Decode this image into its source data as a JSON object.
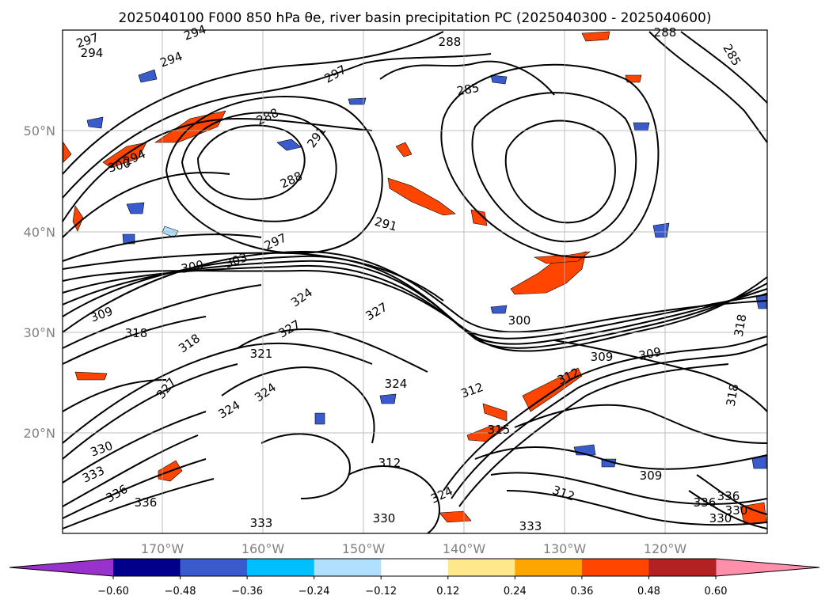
{
  "chart_data": {
    "type": "contour-map",
    "title": "2025040100 F000 850 hPa θe, river basin precipitation PC (2025040300 - 2025040600)",
    "x_ticks": [
      "170°W",
      "160°W",
      "150°W",
      "140°W",
      "130°W",
      "120°W"
    ],
    "y_ticks": [
      "50°N",
      "40°N",
      "30°N",
      "20°N"
    ],
    "grid": true,
    "contour_labels": [
      "297",
      "294",
      "294",
      "294",
      "288",
      "288",
      "285",
      "285",
      "288",
      "291",
      "297",
      "300",
      "294",
      "288",
      "291",
      "297",
      "300",
      "303",
      "309",
      "324",
      "327",
      "318",
      "318",
      "300",
      "321",
      "312",
      "309",
      "309",
      "324",
      "324",
      "312",
      "315",
      "324",
      "327",
      "324",
      "312",
      "309",
      "312",
      "327",
      "330",
      "333",
      "336",
      "336",
      "336",
      "333",
      "330",
      "333",
      "330",
      "336",
      "330",
      "318",
      "318"
    ],
    "colorbar": {
      "ticks": [
        "−0.60",
        "−0.48",
        "−0.36",
        "−0.24",
        "−0.12",
        "0.12",
        "0.24",
        "0.36",
        "0.48",
        "0.60"
      ],
      "bounds": [
        -0.6,
        -0.48,
        -0.36,
        -0.24,
        -0.12,
        0.12,
        0.24,
        0.36,
        0.48,
        0.6
      ],
      "colors": [
        "#9932CC",
        "#00008B",
        "#3A5BCC",
        "#00BFFF",
        "#B0E0FF",
        "#FFFFFF",
        "#FFE88C",
        "#FFA500",
        "#FF4500",
        "#B22222",
        "#FF8FAB"
      ],
      "extend": "both"
    }
  }
}
